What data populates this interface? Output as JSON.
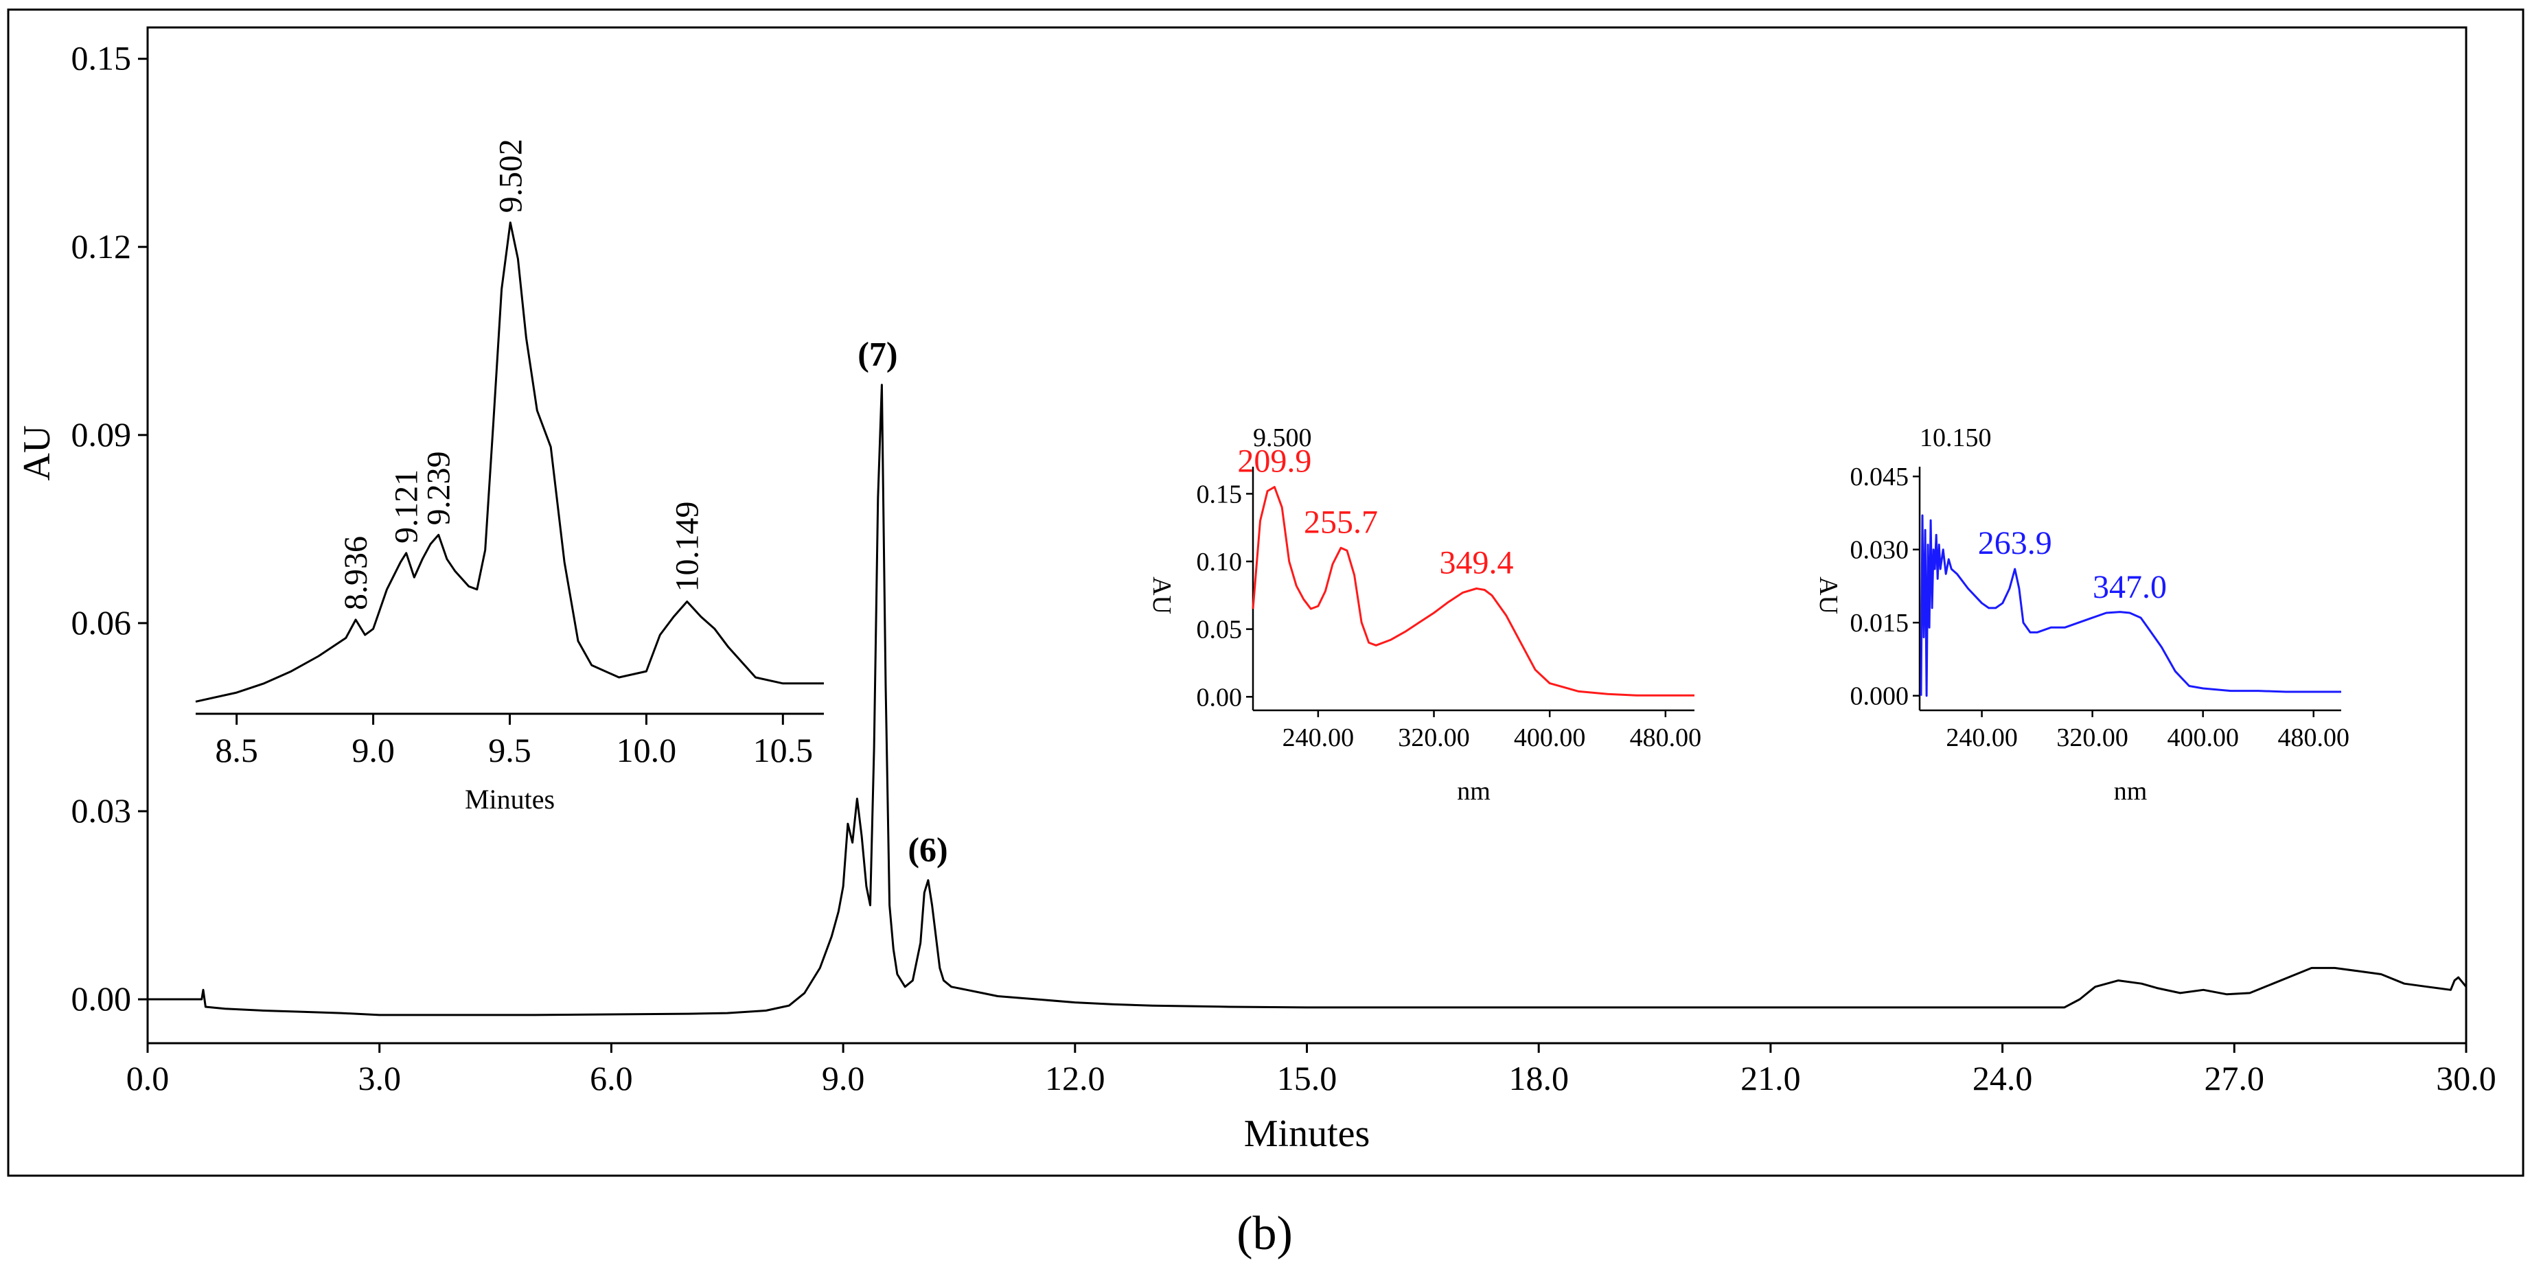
{
  "panel_label": "(b)",
  "colors": {
    "main": "#000000",
    "spectrum_red": "#ff1a1a",
    "spectrum_blue": "#1a1aff"
  },
  "chart_data": [
    {
      "id": "main",
      "type": "line",
      "xlabel": "Minutes",
      "ylabel": "AU",
      "xlim": [
        0,
        30
      ],
      "ylim": [
        -0.007,
        0.155
      ],
      "x_ticks": [
        0,
        3,
        6,
        9,
        12,
        15,
        18,
        21,
        24,
        27,
        30
      ],
      "x_tick_labels": [
        "0.0",
        "3.0",
        "6.0",
        "9.0",
        "12.0",
        "15.0",
        "18.0",
        "21.0",
        "24.0",
        "27.0",
        "30.0"
      ],
      "y_ticks": [
        0,
        0.03,
        0.06,
        0.09,
        0.12,
        0.15
      ],
      "y_tick_labels": [
        "0.00",
        "0.03",
        "0.06",
        "0.09",
        "0.12",
        "0.15"
      ],
      "annotations": [
        {
          "text": "(7)",
          "x": 9.5,
          "y": 0.098
        },
        {
          "text": "(6)",
          "x": 10.15,
          "y": 0.019
        }
      ],
      "series": [
        {
          "x": [
            0,
            0.7,
            0.72,
            0.75,
            1.0,
            1.5,
            2.0,
            2.5,
            3.0,
            4.0,
            5.0,
            6.0,
            7.0,
            7.5,
            8.0,
            8.3,
            8.5,
            8.7,
            8.85,
            8.94,
            9.0,
            9.06,
            9.12,
            9.18,
            9.24,
            9.3,
            9.35,
            9.4,
            9.45,
            9.5,
            9.55,
            9.6,
            9.65,
            9.7,
            9.8,
            9.9,
            10.0,
            10.05,
            10.1,
            10.15,
            10.2,
            10.25,
            10.3,
            10.4,
            10.6,
            10.8,
            11.0,
            11.5,
            12.0,
            12.5,
            13.0,
            14.0,
            15.0,
            16.0,
            18.0,
            20.0,
            21.0,
            22.0,
            24.0,
            24.8,
            25.0,
            25.2,
            25.5,
            25.8,
            26.0,
            26.3,
            26.6,
            26.9,
            27.2,
            27.5,
            27.8,
            28.0,
            28.3,
            28.6,
            28.9,
            29.2,
            29.5,
            29.8,
            29.85,
            29.9,
            30.0
          ],
          "y": [
            0,
            0,
            0.0015,
            -0.0012,
            -0.0015,
            -0.0018,
            -0.002,
            -0.0022,
            -0.0025,
            -0.0025,
            -0.0025,
            -0.0024,
            -0.0023,
            -0.0022,
            -0.0018,
            -0.001,
            0.001,
            0.005,
            0.01,
            0.014,
            0.018,
            0.028,
            0.025,
            0.032,
            0.026,
            0.018,
            0.015,
            0.04,
            0.08,
            0.098,
            0.05,
            0.015,
            0.008,
            0.004,
            0.002,
            0.003,
            0.009,
            0.017,
            0.019,
            0.015,
            0.01,
            0.005,
            0.003,
            0.002,
            0.0015,
            0.001,
            0.0005,
            0.0,
            -0.0005,
            -0.0008,
            -0.001,
            -0.0012,
            -0.0013,
            -0.0013,
            -0.0013,
            -0.0013,
            -0.0013,
            -0.0013,
            -0.0013,
            -0.0013,
            0.0,
            0.002,
            0.003,
            0.0025,
            0.0018,
            0.001,
            0.0015,
            0.0008,
            0.001,
            0.0025,
            0.004,
            0.005,
            0.005,
            0.0045,
            0.004,
            0.0025,
            0.002,
            0.0015,
            0.003,
            0.0035,
            0.002
          ]
        }
      ]
    },
    {
      "id": "inset_zoom",
      "type": "line",
      "xlabel": "Minutes",
      "xlim": [
        8.35,
        10.65
      ],
      "ylim": [
        0.05,
        0.136
      ],
      "x_ticks": [
        8.5,
        9.0,
        9.5,
        10.0,
        10.5
      ],
      "x_tick_labels": [
        "8.5",
        "9.0",
        "9.5",
        "10.0",
        "10.5"
      ],
      "peak_labels": [
        {
          "text": "8.936",
          "x": 8.936,
          "y": 0.0655
        },
        {
          "text": "9.121",
          "x": 9.121,
          "y": 0.0765
        },
        {
          "text": "9.239",
          "x": 9.239,
          "y": 0.0795
        },
        {
          "text": "9.502",
          "x": 9.502,
          "y": 0.131
        },
        {
          "text": "10.149",
          "x": 10.149,
          "y": 0.0685
        }
      ],
      "series": [
        {
          "x": [
            8.35,
            8.5,
            8.6,
            8.7,
            8.8,
            8.85,
            8.9,
            8.936,
            8.97,
            9.0,
            9.05,
            9.1,
            9.121,
            9.15,
            9.18,
            9.21,
            9.239,
            9.27,
            9.3,
            9.35,
            9.38,
            9.41,
            9.44,
            9.47,
            9.502,
            9.53,
            9.56,
            9.6,
            9.65,
            9.7,
            9.75,
            9.8,
            9.9,
            10.0,
            10.05,
            10.1,
            10.149,
            10.2,
            10.25,
            10.3,
            10.4,
            10.5,
            10.65
          ],
          "y": [
            0.052,
            0.0535,
            0.055,
            0.057,
            0.0595,
            0.061,
            0.0625,
            0.0655,
            0.063,
            0.064,
            0.0705,
            0.075,
            0.0765,
            0.0725,
            0.0755,
            0.078,
            0.0795,
            0.0755,
            0.0735,
            0.071,
            0.0705,
            0.077,
            0.098,
            0.12,
            0.131,
            0.125,
            0.112,
            0.1,
            0.094,
            0.075,
            0.062,
            0.058,
            0.056,
            0.057,
            0.063,
            0.066,
            0.0685,
            0.066,
            0.064,
            0.061,
            0.056,
            0.055,
            0.055
          ]
        }
      ]
    },
    {
      "id": "spectrum_red",
      "type": "line",
      "title": "9.500",
      "xlabel": "nm",
      "ylabel": "AU",
      "xlim": [
        195,
        500
      ],
      "ylim": [
        -0.01,
        0.17
      ],
      "x_ticks": [
        240,
        320,
        400,
        480
      ],
      "x_tick_labels": [
        "240.00",
        "320.00",
        "400.00",
        "480.00"
      ],
      "y_ticks": [
        0,
        0.05,
        0.1,
        0.15
      ],
      "y_tick_labels": [
        "0.00",
        "0.05",
        "0.10",
        "0.15"
      ],
      "peak_labels": [
        {
          "text": "209.9",
          "x": 209.9,
          "y": 0.155
        },
        {
          "text": "255.7",
          "x": 255.7,
          "y": 0.11
        },
        {
          "text": "349.4",
          "x": 349.4,
          "y": 0.08
        }
      ],
      "series": [
        {
          "x": [
            195,
            200,
            205,
            209.9,
            215,
            220,
            225,
            230,
            235,
            240,
            245,
            250,
            255.7,
            260,
            265,
            270,
            275,
            280,
            290,
            300,
            310,
            320,
            330,
            340,
            349.4,
            355,
            360,
            370,
            380,
            390,
            400,
            420,
            440,
            460,
            480,
            500
          ],
          "y": [
            0.065,
            0.13,
            0.152,
            0.155,
            0.14,
            0.1,
            0.082,
            0.072,
            0.065,
            0.067,
            0.078,
            0.098,
            0.11,
            0.108,
            0.09,
            0.055,
            0.04,
            0.038,
            0.042,
            0.048,
            0.055,
            0.062,
            0.07,
            0.077,
            0.08,
            0.079,
            0.075,
            0.06,
            0.04,
            0.02,
            0.01,
            0.004,
            0.002,
            0.001,
            0.001,
            0.001
          ]
        }
      ]
    },
    {
      "id": "spectrum_blue",
      "type": "line",
      "title": "10.150",
      "xlabel": "nm",
      "ylabel": "AU",
      "xlim": [
        195,
        500
      ],
      "ylim": [
        -0.003,
        0.047
      ],
      "x_ticks": [
        240,
        320,
        400,
        480
      ],
      "x_tick_labels": [
        "240.00",
        "320.00",
        "400.00",
        "480.00"
      ],
      "y_ticks": [
        0,
        0.015,
        0.03,
        0.045
      ],
      "y_tick_labels": [
        "0.000",
        "0.015",
        "0.030",
        "0.045"
      ],
      "peak_labels": [
        {
          "text": "263.9",
          "x": 263.9,
          "y": 0.026
        },
        {
          "text": "347.0",
          "x": 347.0,
          "y": 0.017
        }
      ],
      "series": [
        {
          "x": [
            196,
            197,
            198,
            199,
            200,
            201,
            202,
            203,
            204,
            205,
            206,
            207,
            208,
            209,
            210,
            212,
            214,
            216,
            218,
            222,
            230,
            240,
            245,
            250,
            255,
            260,
            263.9,
            267,
            270,
            275,
            280,
            290,
            300,
            310,
            320,
            330,
            340,
            347,
            355,
            360,
            370,
            380,
            390,
            400,
            420,
            440,
            460,
            480,
            500
          ],
          "y": [
            0.0,
            0.037,
            0.012,
            0.034,
            0.0,
            0.031,
            0.014,
            0.036,
            0.018,
            0.03,
            0.026,
            0.033,
            0.024,
            0.031,
            0.026,
            0.03,
            0.025,
            0.028,
            0.026,
            0.025,
            0.022,
            0.019,
            0.018,
            0.018,
            0.019,
            0.022,
            0.026,
            0.022,
            0.015,
            0.013,
            0.013,
            0.014,
            0.014,
            0.015,
            0.016,
            0.017,
            0.0172,
            0.017,
            0.016,
            0.014,
            0.01,
            0.005,
            0.002,
            0.0015,
            0.001,
            0.001,
            0.0008,
            0.0008,
            0.0008
          ]
        }
      ]
    }
  ]
}
